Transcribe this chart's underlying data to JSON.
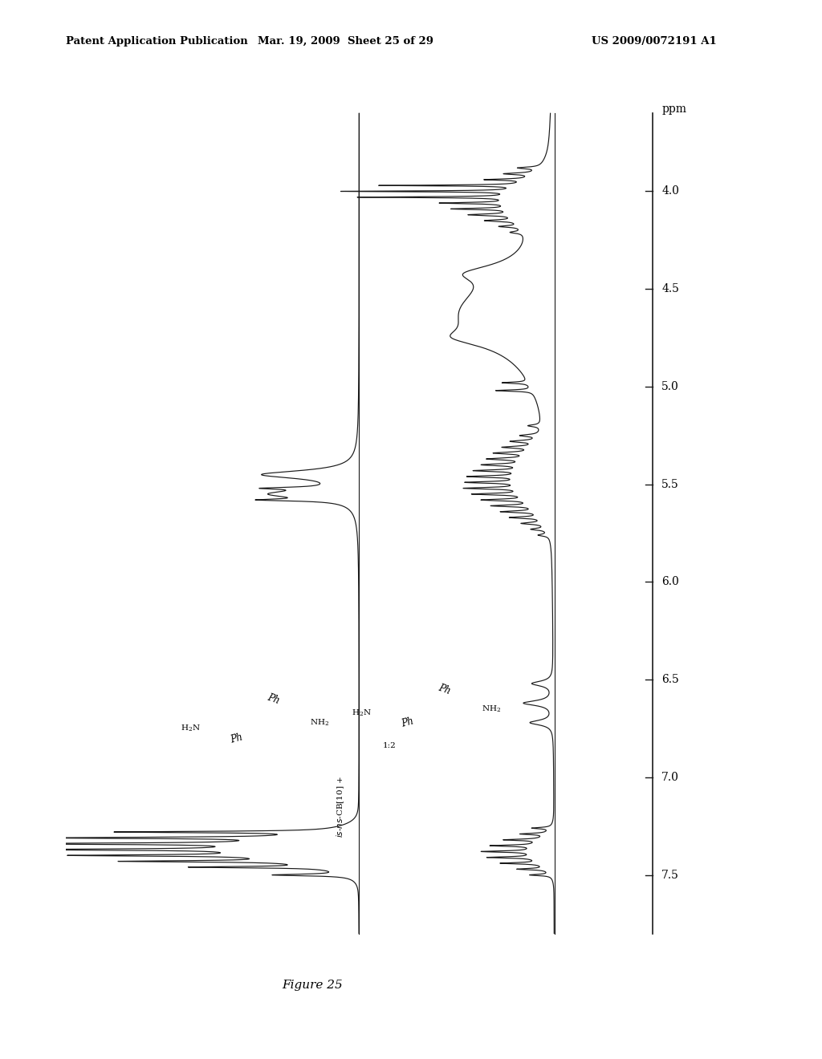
{
  "title_left": "Patent Application Publication",
  "title_mid": "Mar. 19, 2009  Sheet 25 of 29",
  "title_right": "US 2009/0072191 A1",
  "figure_label": "Figure 25",
  "x_axis_label": "ppm",
  "background_color": "#ffffff",
  "spectrum_color": "#1a1a1a",
  "tick_values": [
    4.0,
    4.5,
    5.0,
    5.5,
    6.0,
    6.5,
    7.0,
    7.5
  ],
  "ppm_min": 3.6,
  "ppm_max": 7.8
}
